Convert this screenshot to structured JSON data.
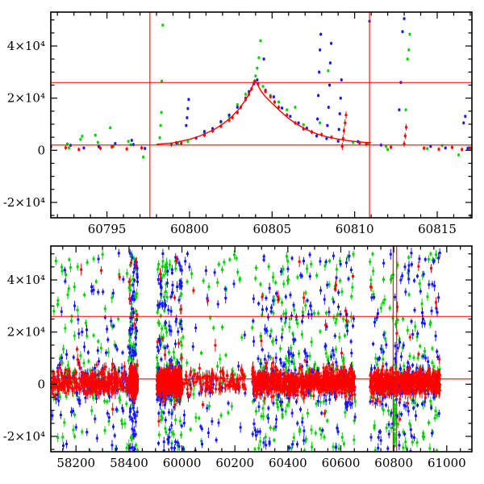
{
  "figure": {
    "background": "#ffffff",
    "colors": {
      "red": "#ff0000",
      "green": "#00d300",
      "blue": "#1414ff",
      "axis": "#000000"
    }
  },
  "chart_data": [
    {
      "type": "scatter",
      "panel": "top",
      "xlabel": "",
      "ylabel": "",
      "xlim": [
        60791.6,
        60817.1
      ],
      "ylim": [
        -25900,
        53000
      ],
      "grid": false,
      "legend": "none",
      "xticks": [
        {
          "v": 60795,
          "label": "60795"
        },
        {
          "v": 60800,
          "label": "60800"
        },
        {
          "v": 60805,
          "label": "60805"
        },
        {
          "v": 60810,
          "label": "60810"
        },
        {
          "v": 60815,
          "label": "60815"
        }
      ],
      "x_minor_step": 1,
      "yticks": [
        {
          "v": -20000,
          "label": "-2×10⁴"
        },
        {
          "v": 0,
          "label": "0"
        },
        {
          "v": 20000,
          "label": "2×10⁴"
        },
        {
          "v": 40000,
          "label": "4×10⁴"
        }
      ],
      "y_minor_step": 5000,
      "hlines": [
        26000,
        2000
      ],
      "vlines": [
        60797.6,
        60810.9
      ],
      "model_curve": [
        [
          60798.0,
          2300
        ],
        [
          60799.0,
          2800
        ],
        [
          60800.0,
          4200
        ],
        [
          60800.5,
          5200
        ],
        [
          60801.0,
          6500
        ],
        [
          60801.5,
          8000
        ],
        [
          60802.0,
          10000
        ],
        [
          60802.5,
          12500
        ],
        [
          60803.0,
          15800
        ],
        [
          60803.3,
          18500
        ],
        [
          60803.6,
          21500
        ],
        [
          60803.8,
          24500
        ],
        [
          60803.95,
          26800
        ],
        [
          60804.1,
          25500
        ],
        [
          60804.3,
          23000
        ],
        [
          60804.6,
          20500
        ],
        [
          60805.0,
          18000
        ],
        [
          60805.5,
          15000
        ],
        [
          60806.0,
          12200
        ],
        [
          60806.5,
          10000
        ],
        [
          60807.0,
          8200
        ],
        [
          60807.5,
          6800
        ],
        [
          60808.0,
          5700
        ],
        [
          60808.5,
          4900
        ],
        [
          60809.0,
          4300
        ],
        [
          60809.5,
          3800
        ],
        [
          60810.0,
          3400
        ],
        [
          60810.5,
          3100
        ],
        [
          60811.0,
          2900
        ]
      ],
      "series": [
        {
          "name": "green",
          "err": 650,
          "points": [
            [
              60791.4,
              1800
            ],
            [
              60791.5,
              -700
            ],
            [
              60792.6,
              2400
            ],
            [
              60792.7,
              900
            ],
            [
              60793.4,
              4200
            ],
            [
              60793.5,
              5400
            ],
            [
              60794.3,
              5800
            ],
            [
              60794.45,
              3000
            ],
            [
              60795.2,
              8600
            ],
            [
              60795.4,
              1500
            ],
            [
              60796.3,
              3400
            ],
            [
              60796.45,
              2100
            ],
            [
              60797.2,
              -2600
            ],
            [
              60798.2,
              4800
            ],
            [
              60798.25,
              9500
            ],
            [
              60798.3,
              14500
            ],
            [
              60798.32,
              26500
            ],
            [
              60798.38,
              48000
            ],
            [
              60799.3,
              2600
            ],
            [
              60799.9,
              3400
            ],
            [
              60800.9,
              6300
            ],
            [
              60801.9,
              10800
            ],
            [
              60802.4,
              12800
            ],
            [
              60802.9,
              17500
            ],
            [
              60803.4,
              21500
            ],
            [
              60803.9,
              26000
            ],
            [
              60804.0,
              28500
            ],
            [
              60804.1,
              31500
            ],
            [
              60804.2,
              35500
            ],
            [
              60804.3,
              42000
            ],
            [
              60804.45,
              24500
            ],
            [
              60804.9,
              21000
            ],
            [
              60805.4,
              18500
            ],
            [
              60805.9,
              15500
            ],
            [
              60806.4,
              16500
            ],
            [
              60806.9,
              9800
            ],
            [
              60807.9,
              10500
            ],
            [
              60808.4,
              30500
            ],
            [
              60809.9,
              3000
            ],
            [
              60810.8,
              2500
            ],
            [
              60811.9,
              1500
            ],
            [
              60812.0,
              300
            ],
            [
              60813.1,
              15500
            ],
            [
              60813.2,
              35000
            ],
            [
              60813.28,
              38500
            ],
            [
              60813.34,
              44500
            ],
            [
              60814.4,
              600
            ],
            [
              60815.3,
              1800
            ],
            [
              60816.3,
              -1800
            ],
            [
              60816.9,
              1000
            ]
          ]
        },
        {
          "name": "blue",
          "err": 650,
          "points": [
            [
              60791.6,
              1300
            ],
            [
              60792.8,
              1900
            ],
            [
              60793.6,
              900
            ],
            [
              60794.5,
              1400
            ],
            [
              60795.5,
              2600
            ],
            [
              60796.5,
              3800
            ],
            [
              60796.6,
              2200
            ],
            [
              60797.3,
              700
            ],
            [
              60799.2,
              2900
            ],
            [
              60799.8,
              9500
            ],
            [
              60799.85,
              12500
            ],
            [
              60799.9,
              16000
            ],
            [
              60799.95,
              19500
            ],
            [
              60800.4,
              4700
            ],
            [
              60800.9,
              7200
            ],
            [
              60801.4,
              8300
            ],
            [
              60801.9,
              11000
            ],
            [
              60802.4,
              13500
            ],
            [
              60802.9,
              16500
            ],
            [
              60803.4,
              20000
            ],
            [
              60803.6,
              22500
            ],
            [
              60803.9,
              25500
            ],
            [
              60804.1,
              27000
            ],
            [
              60804.5,
              35000
            ],
            [
              60804.6,
              23000
            ],
            [
              60805.1,
              20500
            ],
            [
              60805.6,
              16200
            ],
            [
              60806.1,
              13000
            ],
            [
              60806.6,
              10500
            ],
            [
              60807.1,
              8500
            ],
            [
              60807.7,
              5500
            ],
            [
              60807.75,
              12000
            ],
            [
              60807.8,
              21000
            ],
            [
              60807.85,
              30000
            ],
            [
              60807.9,
              38500
            ],
            [
              60807.95,
              44500
            ],
            [
              60808.3,
              4500
            ],
            [
              60808.35,
              9500
            ],
            [
              60808.42,
              16500
            ],
            [
              60808.48,
              25000
            ],
            [
              60808.52,
              33500
            ],
            [
              60808.58,
              41000
            ],
            [
              60809.0,
              3500
            ],
            [
              60809.05,
              8000
            ],
            [
              60809.1,
              14000
            ],
            [
              60809.15,
              20000
            ],
            [
              60809.2,
              27000
            ],
            [
              60810.2,
              3300
            ],
            [
              60810.9,
              49500
            ],
            [
              60811.6,
              2000
            ],
            [
              60812.7,
              15500
            ],
            [
              60812.8,
              26000
            ],
            [
              60812.9,
              45500
            ],
            [
              60813.0,
              50500
            ],
            [
              60814.6,
              1500
            ],
            [
              60815.5,
              900
            ],
            [
              60816.6,
              10500
            ],
            [
              60816.7,
              13000
            ],
            [
              60816.85,
              700
            ]
          ]
        },
        {
          "name": "red",
          "err": 800,
          "points": [
            [
              60791.5,
              600
            ],
            [
              60792.5,
              1000
            ],
            [
              60793.3,
              300
            ],
            [
              60794.6,
              800
            ],
            [
              60795.3,
              1300
            ],
            [
              60796.2,
              500
            ],
            [
              60797.1,
              900
            ],
            [
              60798.9,
              2200
            ],
            [
              60799.5,
              2700
            ],
            [
              60800.9,
              5800
            ],
            [
              60801.4,
              7400
            ],
            [
              60801.9,
              9200
            ],
            [
              60802.4,
              11500
            ],
            [
              60802.6,
              12500
            ],
            [
              60802.9,
              14500
            ],
            [
              60803.1,
              16500
            ],
            [
              60803.4,
              19500
            ],
            [
              60803.6,
              21500
            ],
            [
              60803.75,
              23500
            ],
            [
              60803.95,
              26500
            ],
            [
              60804.15,
              25500
            ],
            [
              60804.6,
              22500
            ],
            [
              60804.9,
              20500
            ],
            [
              60805.15,
              18500
            ],
            [
              60805.4,
              16500
            ],
            [
              60805.9,
              13500
            ],
            [
              60806.4,
              10500
            ],
            [
              60806.9,
              8200
            ],
            [
              60807.4,
              7000
            ],
            [
              60808.0,
              6000
            ],
            [
              60808.6,
              5000
            ],
            [
              60809.25,
              1500,
              1400
            ],
            [
              60809.3,
              4500,
              1400
            ],
            [
              60809.35,
              7500,
              1400
            ],
            [
              60809.42,
              10500,
              1400
            ],
            [
              60809.48,
              13500,
              1400
            ],
            [
              60810.3,
              2800
            ],
            [
              60810.7,
              2300
            ],
            [
              60812.2,
              1200
            ],
            [
              60813.0,
              2500,
              1200
            ],
            [
              60813.06,
              5500,
              1200
            ],
            [
              60813.12,
              8800,
              1200
            ],
            [
              60814.2,
              800
            ],
            [
              60815.1,
              400
            ],
            [
              60815.9,
              1100
            ],
            [
              60816.5,
              300
            ],
            [
              60817.0,
              800
            ]
          ]
        }
      ]
    },
    {
      "type": "scatter",
      "panel": "bottom",
      "xlabel": "",
      "ylabel": "",
      "ylim": [
        -25900,
        53000
      ],
      "grid": false,
      "legend": "none",
      "x_axis_breakpoints": [
        [
          58105,
          0.0
        ],
        [
          58400,
          0.1857
        ],
        [
          60000,
          0.3114
        ],
        [
          61095,
          1.0
        ]
      ],
      "xticks": [
        {
          "v": 58200,
          "label": "58200"
        },
        {
          "v": 58400,
          "label": "58400"
        },
        {
          "v": 60000,
          "label": "60000"
        },
        {
          "v": 60200,
          "label": "60200"
        },
        {
          "v": 60400,
          "label": "60400"
        },
        {
          "v": 60600,
          "label": "60600"
        },
        {
          "v": 60800,
          "label": "60800"
        },
        {
          "v": 61000,
          "label": "61000"
        }
      ],
      "yticks": [
        {
          "v": -20000,
          "label": "-2×10⁴"
        },
        {
          "v": 0,
          "label": "0"
        },
        {
          "v": 20000,
          "label": "2×10⁴"
        },
        {
          "v": 40000,
          "label": "4×10⁴"
        }
      ],
      "y_minor_step": 5000,
      "hlines": [
        26000,
        2000
      ],
      "vlines": [
        60797.6,
        60810.9
      ],
      "green_column": {
        "x": 60803,
        "y0": -25500,
        "y1": 3500,
        "n": 45
      },
      "random_seed": 12345,
      "clusters": [
        {
          "x0": 58110,
          "x1": 58660,
          "green": 230,
          "blue": 230,
          "red": 560
        },
        {
          "x0": 59240,
          "x1": 60240,
          "green": 230,
          "blue": 230,
          "red": 560
        },
        {
          "x0": 60265,
          "x1": 60655,
          "green": 250,
          "blue": 260,
          "red": 640
        },
        {
          "x0": 60710,
          "x1": 60975,
          "green": 180,
          "blue": 190,
          "red": 460
        }
      ],
      "distributions": {
        "green": {
          "core_frac": 0.45,
          "core_mu": 1500,
          "core_sigma": 4200,
          "tail_lo": -26000,
          "tail_hi": 50500,
          "err_base": 900,
          "err_var": 1200
        },
        "blue": {
          "core_frac": 0.45,
          "core_mu": 800,
          "core_sigma": 4200,
          "tail_lo": -26000,
          "tail_hi": 50500,
          "err_base": 900,
          "err_var": 1200
        },
        "red": {
          "core_frac": 0.965,
          "core_mu": 700,
          "core_sigma": 2300,
          "tail_lo": -16000,
          "tail_hi": 48000,
          "err_base": 1100,
          "err_var": 1400
        }
      }
    }
  ]
}
